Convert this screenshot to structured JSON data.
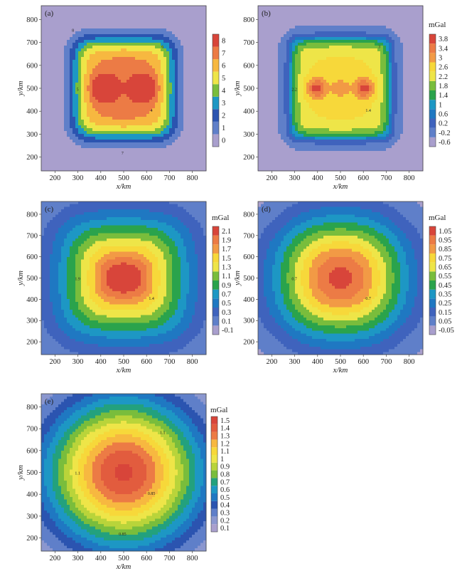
{
  "chart_data": [
    {
      "panel": "(a)",
      "type": "heatmap",
      "subtype": "filled-contour",
      "xlabel": "x/km",
      "ylabel": "y/km",
      "unit": "",
      "xlim": [
        140,
        860
      ],
      "ylim": [
        140,
        860
      ],
      "xticks": [
        200,
        300,
        400,
        500,
        600,
        700,
        800
      ],
      "yticks": [
        200,
        300,
        400,
        500,
        600,
        700,
        800
      ],
      "colorbar": {
        "levels": [
          0,
          1,
          2,
          3,
          4,
          5,
          6,
          7,
          8
        ],
        "labels": [
          "0",
          "1",
          "2",
          "3",
          "4",
          "5",
          "6",
          "7",
          "8"
        ]
      },
      "field": {
        "kind": "square",
        "peak": 8.6,
        "background": 0.2,
        "center": [
          500,
          500
        ],
        "half_width": 210,
        "edge_softness": 28,
        "dip": 1.8,
        "blobs": [
          [
            410,
            500,
            2.6,
            38
          ],
          [
            590,
            500,
            2.6,
            38
          ]
        ]
      },
      "contour_labels": [
        "4",
        "5",
        "6",
        "7",
        "8"
      ]
    },
    {
      "panel": "(b)",
      "type": "heatmap",
      "subtype": "filled-contour",
      "xlabel": "x/km",
      "ylabel": "y/km",
      "unit": "mGal",
      "xlim": [
        140,
        860
      ],
      "ylim": [
        140,
        860
      ],
      "xticks": [
        200,
        300,
        400,
        500,
        600,
        700,
        800
      ],
      "yticks": [
        200,
        300,
        400,
        500,
        600,
        700,
        800
      ],
      "colorbar": {
        "levels": [
          -0.6,
          -0.2,
          0.2,
          0.6,
          1.0,
          1.4,
          1.8,
          2.2,
          2.6,
          3.0,
          3.4,
          3.8
        ],
        "labels": [
          "-0.6",
          "-0.2",
          "0.2",
          "0.6",
          "1",
          "1.4",
          "1.8",
          "2.2",
          "2.6",
          "3",
          "3.4",
          "3.8"
        ]
      },
      "field": {
        "kind": "square",
        "peak": 3.1,
        "background": -0.3,
        "center": [
          500,
          500
        ],
        "half_width": 215,
        "edge_softness": 18,
        "dip": 0.7,
        "blobs": [
          [
            395,
            500,
            1.3,
            30
          ],
          [
            605,
            500,
            1.3,
            30
          ],
          [
            500,
            500,
            0.6,
            25
          ]
        ]
      },
      "contour_labels": [
        "1.4",
        "2.2",
        "3"
      ]
    },
    {
      "panel": "(c)",
      "type": "heatmap",
      "subtype": "filled-contour",
      "xlabel": "x/km",
      "ylabel": "y/km",
      "unit": "mGal",
      "xlim": [
        140,
        860
      ],
      "ylim": [
        140,
        860
      ],
      "xticks": [
        200,
        300,
        400,
        500,
        600,
        700,
        800
      ],
      "yticks": [
        200,
        300,
        400,
        500,
        600,
        700,
        800
      ],
      "colorbar": {
        "levels": [
          -0.1,
          0.1,
          0.3,
          0.5,
          0.7,
          0.9,
          1.1,
          1.3,
          1.5,
          1.7,
          1.9,
          2.1
        ],
        "labels": [
          "-0.1",
          "0.1",
          "0.3",
          "0.5",
          "0.7",
          "0.9",
          "1.1",
          "1.3",
          "1.5",
          "1.7",
          "1.9",
          "2.1"
        ]
      },
      "field": {
        "kind": "rounded",
        "peak": 2.05,
        "background": -0.05,
        "center": [
          500,
          500
        ],
        "radius": 290,
        "power": 3.2,
        "blobs": [
          [
            460,
            500,
            0.25,
            55
          ],
          [
            540,
            500,
            0.25,
            55
          ]
        ]
      },
      "contour_labels": [
        "1.4",
        "1.9"
      ]
    },
    {
      "panel": "(d)",
      "type": "heatmap",
      "subtype": "filled-contour",
      "xlabel": "x/km",
      "ylabel": "y/km",
      "unit": "mGal",
      "xlim": [
        140,
        860
      ],
      "ylim": [
        140,
        860
      ],
      "xticks": [
        200,
        300,
        400,
        500,
        600,
        700,
        800
      ],
      "yticks": [
        200,
        300,
        400,
        500,
        600,
        700,
        800
      ],
      "colorbar": {
        "levels": [
          -0.05,
          0.05,
          0.15,
          0.25,
          0.35,
          0.45,
          0.55,
          0.65,
          0.75,
          0.85,
          0.95,
          1.05
        ],
        "labels": [
          "-0.05",
          "0.05",
          "0.15",
          "0.25",
          "0.35",
          "0.45",
          "0.55",
          "0.65",
          "0.75",
          "0.85",
          "0.95",
          "1.05"
        ]
      },
      "field": {
        "kind": "rounded",
        "peak": 1.08,
        "background": -0.03,
        "center": [
          500,
          500
        ],
        "radius": 300,
        "power": 2.3,
        "blobs": []
      },
      "contour_labels": [
        "0.7",
        "0.7"
      ]
    },
    {
      "panel": "(e)",
      "type": "heatmap",
      "subtype": "filled-contour",
      "xlabel": "x/km",
      "ylabel": "y/km",
      "unit": "mGal",
      "xlim": [
        140,
        860
      ],
      "ylim": [
        140,
        860
      ],
      "xticks": [
        200,
        300,
        400,
        500,
        600,
        700,
        800
      ],
      "yticks": [
        200,
        300,
        400,
        500,
        600,
        700,
        800
      ],
      "colorbar": {
        "levels": [
          0.1,
          0.2,
          0.3,
          0.4,
          0.5,
          0.6,
          0.7,
          0.8,
          0.9,
          1.0,
          1.1,
          1.2,
          1.3,
          1.4,
          1.5
        ],
        "labels": [
          "0.1",
          "0.2",
          "0.3",
          "0.4",
          "0.5",
          "0.6",
          "0.7",
          "0.8",
          "0.9",
          "1",
          "1.1",
          "1.2",
          "1.3",
          "1.4",
          "1.5"
        ]
      },
      "field": {
        "kind": "rounded",
        "peak": 1.52,
        "background": 0.08,
        "center": [
          500,
          500
        ],
        "radius": 360,
        "power": 2.0,
        "blobs": []
      },
      "contour_labels": [
        "0.85",
        "1.1",
        "1.1",
        "0.85"
      ]
    }
  ]
}
